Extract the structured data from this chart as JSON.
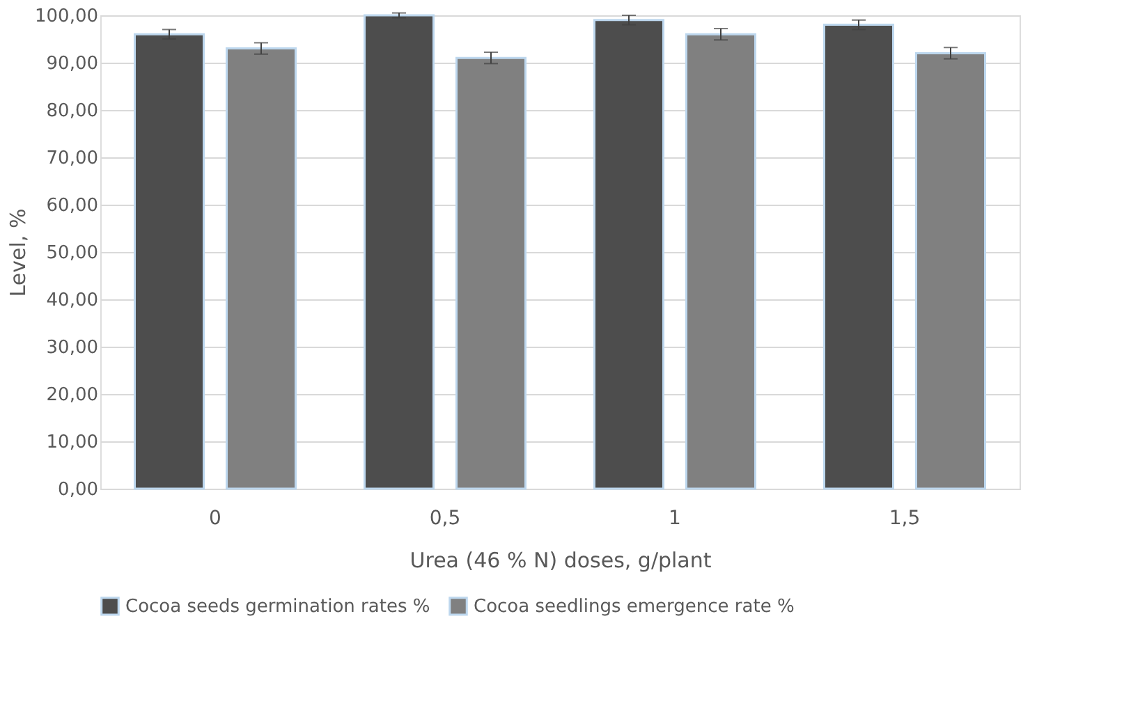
{
  "chart_data": {
    "type": "bar",
    "xlabel": "Urea (46 % N) doses, g/plant",
    "ylabel": "Level, %",
    "categories": [
      "0",
      "0,5",
      "1",
      "1,5"
    ],
    "series": [
      {
        "name": "Cocoa seeds germination rates %",
        "color": "#4d4d4d",
        "values": [
          96,
          100,
          99,
          98
        ],
        "errors": [
          1,
          0.5,
          1,
          1
        ]
      },
      {
        "name": "Cocoa seedlings emergence rate %",
        "color": "#808080",
        "values": [
          93,
          91,
          96,
          92
        ],
        "errors": [
          1.2,
          1.2,
          1.2,
          1.2
        ]
      }
    ],
    "ylim": [
      0,
      100
    ],
    "yticks": [
      {
        "value": 0,
        "label": "0,00"
      },
      {
        "value": 10,
        "label": "10,00"
      },
      {
        "value": 20,
        "label": "20,00"
      },
      {
        "value": 30,
        "label": "30,00"
      },
      {
        "value": 40,
        "label": "40,00"
      },
      {
        "value": 50,
        "label": "50,00"
      },
      {
        "value": 60,
        "label": "60,00"
      },
      {
        "value": 70,
        "label": "70,00"
      },
      {
        "value": 80,
        "label": "80,00"
      },
      {
        "value": 90,
        "label": "90,00"
      },
      {
        "value": 100,
        "label": "100,00"
      }
    ],
    "grid": "y",
    "legend": "bottom"
  }
}
